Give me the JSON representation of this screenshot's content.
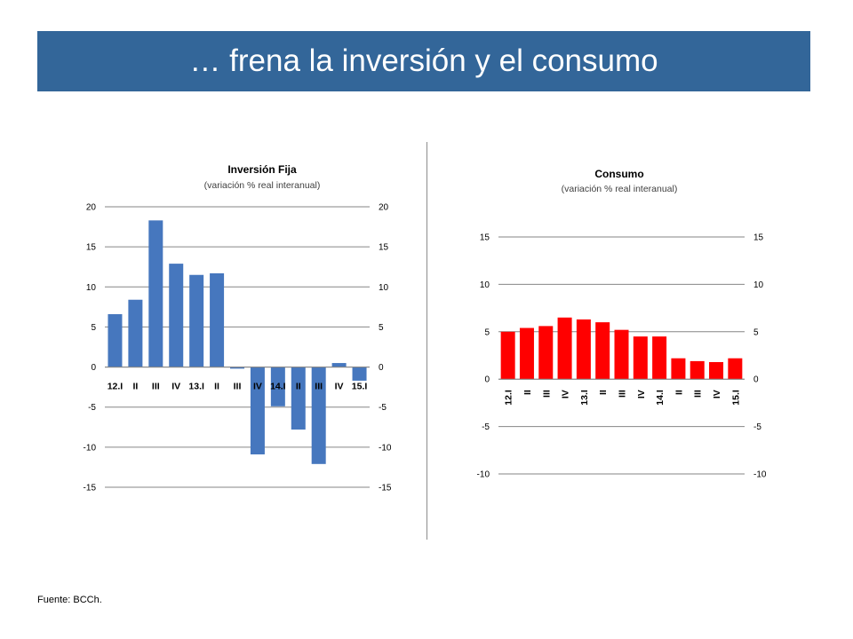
{
  "header": {
    "title": "… frena la inversión y el consumo"
  },
  "footer": {
    "source": "Fuente: BCCh."
  },
  "colors": {
    "banner": "#336699",
    "inversion_bar": "#4677BE",
    "consumo_bar": "#FF0000"
  },
  "chart_data": [
    {
      "type": "bar",
      "title": "Inversión Fija",
      "subtitle": "(variación % real interanual)",
      "categories": [
        "12.I",
        "II",
        "III",
        "IV",
        "13.I",
        "II",
        "III",
        "IV",
        "14.I",
        "II",
        "III",
        "IV",
        "15.I"
      ],
      "values": [
        6.6,
        8.4,
        18.3,
        12.9,
        11.5,
        11.7,
        -0.2,
        -10.9,
        -4.9,
        -7.8,
        -12.1,
        0.5,
        -1.7
      ],
      "ylim": [
        -15,
        20
      ],
      "yticks": [
        20,
        15,
        10,
        5,
        0,
        -5,
        -10,
        -15
      ],
      "secondary_axis": true,
      "grid": true,
      "legend": "none"
    },
    {
      "type": "bar",
      "title": "Consumo",
      "subtitle": "(variación % real interanual)",
      "categories": [
        "12.I",
        "II",
        "III",
        "IV",
        "13.I",
        "II",
        "III",
        "IV",
        "14.I",
        "II",
        "III",
        "IV",
        "15.I"
      ],
      "values": [
        5.0,
        5.4,
        5.6,
        6.5,
        6.3,
        6.0,
        5.2,
        4.5,
        4.5,
        2.2,
        1.9,
        1.8,
        2.2
      ],
      "ylim": [
        -10,
        15
      ],
      "yticks": [
        15,
        10,
        5,
        0,
        -5,
        -10
      ],
      "secondary_axis": true,
      "grid": true,
      "legend": "none"
    }
  ]
}
